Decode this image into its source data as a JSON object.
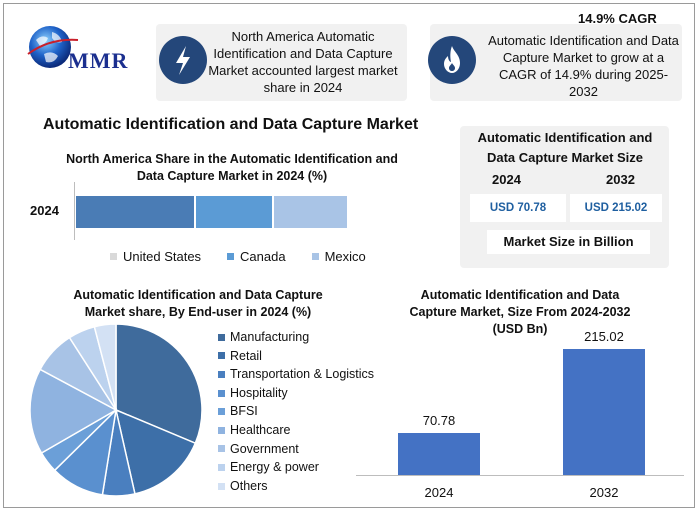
{
  "logo": {
    "text": "MMR"
  },
  "info_cards": [
    {
      "icon": "lightning-icon",
      "text": "North America Automatic Identification and Data Capture Market accounted largest market share in 2024"
    },
    {
      "icon": "flame-icon",
      "label": "14.9% CAGR",
      "text": "Automatic Identification and Data Capture Market to grow at a CAGR of 14.9% during 2025-2032"
    }
  ],
  "main_title": "Automatic Identification and Data Capture Market",
  "market_size_box": {
    "title": "Automatic Identification and Data Capture Market Size",
    "years": [
      "2024",
      "2032"
    ],
    "values": [
      "USD 70.78",
      "USD 215.02"
    ],
    "unit_label": "Market Size in Billion"
  },
  "colors": {
    "accent_dark": "#24477a",
    "value_text": "#1f5fa0",
    "bar_blue": "#4472c4"
  },
  "chart_data": [
    {
      "type": "bar",
      "orientation": "horizontal-stacked",
      "title": "North America Share in the Automatic Identification and Data Capture Market in 2024 (%)",
      "categories": [
        "2024"
      ],
      "series": [
        {
          "name": "United States",
          "values": [
            40
          ],
          "color": "#4a7cb5"
        },
        {
          "name": "Canada",
          "values": [
            26
          ],
          "color": "#5b9bd5"
        },
        {
          "name": "Mexico",
          "values": [
            25
          ],
          "color": "#a9c4e6"
        }
      ],
      "legend": "bottom"
    },
    {
      "type": "pie",
      "title": "Automatic Identification and Data Capture Market share, By End-user in 2024  (%)",
      "labels": [
        "Manufacturing",
        "Retail",
        "Transportation & Logistics",
        "Hospitality",
        "BFSI",
        "Healthcare",
        "Government",
        "Energy & power",
        "Others"
      ],
      "values": [
        31,
        15,
        6,
        10,
        4,
        16,
        8,
        5,
        4
      ],
      "colors": [
        "#3f6b9c",
        "#3d6fa8",
        "#4a7fbf",
        "#5a90cf",
        "#6b9fd8",
        "#8fb3e0",
        "#a8c3e6",
        "#bcd2ee",
        "#d3e1f4"
      ],
      "legend": "right"
    },
    {
      "type": "bar",
      "title": "Automatic Identification and Data Capture Market, Size From 2024-2032 (USD Bn)",
      "categories": [
        "2024",
        "2032"
      ],
      "values": [
        70.78,
        215.02
      ],
      "value_labels": [
        "70.78",
        "215.02"
      ],
      "ylim": [
        0,
        230
      ]
    }
  ]
}
